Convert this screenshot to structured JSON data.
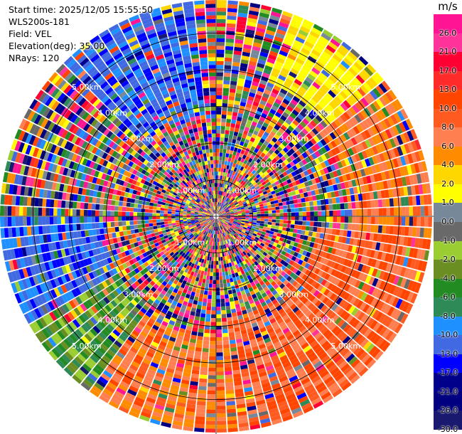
{
  "info": {
    "start_time": "Start time: 2025/12/05 15:55:50",
    "instrument": "WLS200s-181",
    "field": "Field: VEL",
    "elevation": "Elevation(deg): 35.00",
    "nrays": "NRays: 120"
  },
  "chart_data": {
    "type": "heatmap",
    "projection": "polar",
    "n_rays": 120,
    "range_rings_km": [
      "1.00km",
      "2.00km",
      "3.00km",
      "4.00km",
      "5.00km"
    ],
    "colorbar": {
      "unit": "m/s",
      "ticks": [
        "26.0",
        "21.0",
        "17.0",
        "13.0",
        "10.0",
        "8.0",
        "6.0",
        "4.0",
        "2.0",
        "1.0",
        "0.0",
        "-1.0",
        "-2.0",
        "-4.0",
        "-6.0",
        "-8.0",
        "-10.0",
        "-13.0",
        "-17.0",
        "-21.0",
        "-26.0",
        "-30.0"
      ],
      "colors": [
        "#ff1493",
        "#ff3399",
        "#ff0033",
        "#ff2a2a",
        "#ff4500",
        "#ff5a1f",
        "#ff7f50",
        "#ff8c00",
        "#ffd700",
        "#ffff00",
        "#778899",
        "#696969",
        "#9acd32",
        "#6b8e23",
        "#228b22",
        "#2e8b57",
        "#1e90ff",
        "#4169e1",
        "#0000ff",
        "#00008b",
        "#000080",
        "#191970"
      ]
    }
  }
}
